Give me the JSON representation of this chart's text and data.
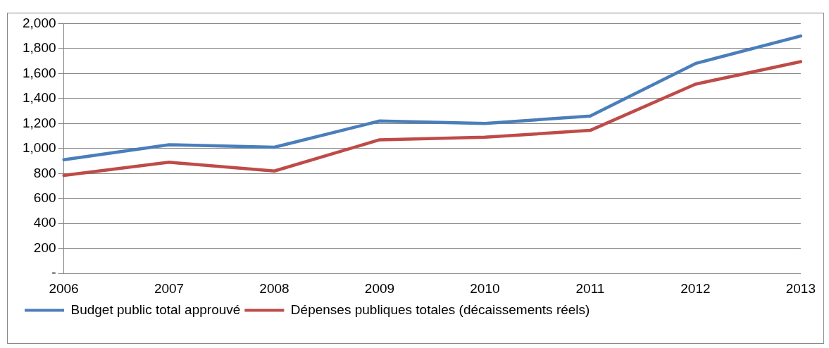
{
  "chart_data": {
    "type": "line",
    "categories": [
      "2006",
      "2007",
      "2008",
      "2009",
      "2010",
      "2011",
      "2012",
      "2013"
    ],
    "series": [
      {
        "name": "Budget public total approuvé",
        "color": "#4a7ebb",
        "values": [
          910,
          1030,
          1010,
          1220,
          1200,
          1260,
          1680,
          1900
        ]
      },
      {
        "name": "Dépenses publiques totales (décaissements réels)",
        "color": "#be4b48",
        "values": [
          785,
          890,
          820,
          1070,
          1090,
          1145,
          1515,
          1695
        ]
      }
    ],
    "ylim": [
      0,
      2000
    ],
    "yticks": [
      {
        "value": 0,
        "label": "-"
      },
      {
        "value": 200,
        "label": "200"
      },
      {
        "value": 400,
        "label": "400"
      },
      {
        "value": 600,
        "label": "600"
      },
      {
        "value": 800,
        "label": "800"
      },
      {
        "value": 1000,
        "label": "1,000"
      },
      {
        "value": 1200,
        "label": "1,200"
      },
      {
        "value": 1400,
        "label": "1,400"
      },
      {
        "value": 1600,
        "label": "1,600"
      },
      {
        "value": 1800,
        "label": "1,800"
      },
      {
        "value": 2000,
        "label": "2,000"
      }
    ],
    "grid": "y",
    "legend": "bottom left",
    "marker": "none",
    "line_style": "solid"
  }
}
